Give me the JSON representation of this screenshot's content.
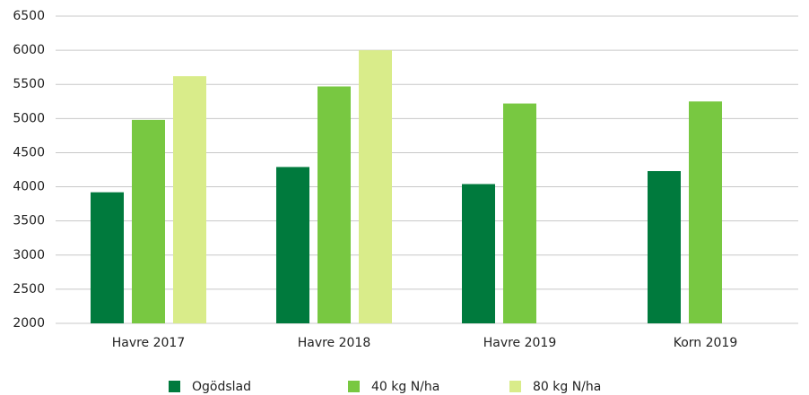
{
  "chart_data": {
    "type": "bar",
    "categories": [
      "Havre 2017",
      "Havre 2018",
      "Havre 2019",
      "Korn 2019"
    ],
    "series": [
      {
        "name": "Ogödslad",
        "color": "#007a3d",
        "values": [
          3920,
          4290,
          4040,
          4230
        ]
      },
      {
        "name": "40 kg N/ha",
        "color": "#78c841",
        "values": [
          4980,
          5470,
          5220,
          5250
        ]
      },
      {
        "name": "80 kg N/ha",
        "color": "#d9ec8a",
        "values": [
          5620,
          6000,
          null,
          null
        ]
      }
    ],
    "ylim": [
      2000,
      6500
    ],
    "yticks": [
      2000,
      2500,
      3000,
      3500,
      4000,
      4500,
      5000,
      5500,
      6000,
      6500
    ],
    "grid": true,
    "legend": "bottom"
  }
}
